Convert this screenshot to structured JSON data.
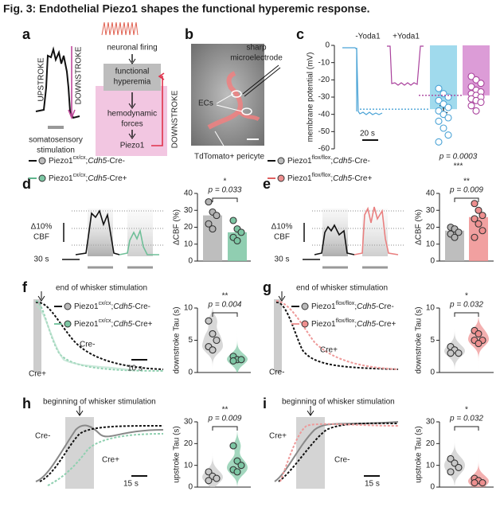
{
  "title": "Fig. 3: Endothelial Piezo1 shapes the functional hyperemic response.",
  "panels": {
    "a": {
      "label": "a",
      "upstroke": "UPSTROKE",
      "downstroke": "DOWNSTROKE",
      "stimulus": [
        "somatosensory",
        "stimulation"
      ],
      "flow": {
        "firing": "neuronal firing",
        "hyperemia": [
          "functional",
          "hyperemia"
        ],
        "forces": [
          "hemodynamic",
          "forces"
        ],
        "receptor": "Piezo1",
        "downstroke": "DOWNSTROKE"
      }
    },
    "b": {
      "label": "b",
      "electrode": [
        "sharp",
        "microelectrode"
      ],
      "cells": "ECs",
      "pericyte": "TdTomato+ pericyte"
    },
    "c": {
      "label": "c"
    },
    "d": {
      "label": "d",
      "legend": [
        {
          "gene": "Piezo1",
          "sup": "cx/cx",
          "sep": ";",
          "driver": "Cdh5",
          "suffix": "-Cre-"
        },
        {
          "gene": "Piezo1",
          "sup": "cx/cx",
          "sep": ";",
          "driver": "Cdh5",
          "suffix": "-Cre+"
        }
      ],
      "scale": [
        "Δ10%",
        "CBF"
      ],
      "time": "30 s"
    },
    "e": {
      "label": "e",
      "legend": [
        {
          "gene": "Piezo1",
          "sup": "flox/flox",
          "sep": ";",
          "driver": "Cdh5",
          "suffix": "-Cre-"
        },
        {
          "gene": "Piezo1",
          "sup": "flox/flox",
          "sep": ";",
          "driver": "Cdh5",
          "suffix": "-Cre+"
        }
      ],
      "scale": [
        "Δ10%",
        "CBF"
      ],
      "time": "30 s"
    },
    "f": {
      "label": "f",
      "marker": "end of whisker stimulation",
      "legend": [
        {
          "gene": "Piezo1",
          "sup": "cx/cx",
          "sep": ";",
          "driver": "Cdh5",
          "suffix": "-Cre-"
        },
        {
          "gene": "Piezo1",
          "sup": "cx/cx",
          "sep": ";",
          "driver": "Cdh5",
          "suffix": "-Cre+"
        }
      ],
      "trace_labels": [
        "Cre-",
        "Cre+"
      ],
      "time": "10 s"
    },
    "g": {
      "label": "g",
      "marker": "end of whisker stimulation",
      "legend": [
        {
          "gene": "Piezo1",
          "sup": "flox/flox",
          "sep": ";",
          "driver": "Cdh5",
          "suffix": "-Cre-"
        },
        {
          "gene": "Piezo1",
          "sup": "flox/flox",
          "sep": ";",
          "driver": "Cdh5",
          "suffix": "-Cre+"
        }
      ],
      "trace_labels": [
        "Cre+",
        "Cre-"
      ]
    },
    "h": {
      "label": "h",
      "marker": "beginning of whisker stimulation",
      "trace_labels": [
        "Cre-",
        "Cre+"
      ],
      "time": "15 s"
    },
    "i": {
      "label": "i",
      "marker": "beginning of whisker stimulation",
      "trace_labels": [
        "Cre+",
        "Cre-"
      ],
      "time": "15 s"
    }
  },
  "chart_data": [
    {
      "type": "bar",
      "ylabel": "membrane potential (mV)",
      "ylim": [
        -60,
        0
      ],
      "yticks": [
        0,
        -10,
        -20,
        -30,
        -40,
        -50,
        -60
      ],
      "trace_labels": [
        "-Yoda1",
        "+Yoda1"
      ],
      "time": "20 s",
      "categories": [
        null,
        null
      ],
      "colors": [
        "#8fd3ea",
        "#d68bd0"
      ],
      "values": [
        -37,
        -29
      ],
      "errors": [
        2,
        1.5
      ],
      "points": [
        [
          -25,
          -28,
          -30,
          -32,
          -34,
          -36,
          -38,
          -40,
          -42,
          -44,
          -48,
          -52,
          -56
        ],
        [
          -18,
          -20,
          -22,
          -24,
          -26,
          -27,
          -28,
          -29,
          -30,
          -31,
          -32,
          -33,
          -35,
          -38
        ]
      ],
      "p_label": "p = 0.0003",
      "stars": "***"
    },
    {
      "type": "bar",
      "ylabel": "ΔCBF (%)",
      "ylim": [
        0,
        40
      ],
      "yticks": [
        0,
        10,
        20,
        30,
        40
      ],
      "categories": [
        null,
        null
      ],
      "colors": [
        "#b3b3b3",
        "#7cc6a3"
      ],
      "values": [
        27,
        17
      ],
      "points": [
        [
          35,
          29,
          27,
          22,
          19
        ],
        [
          24,
          19,
          17,
          14,
          12
        ]
      ],
      "p_label": "p = 0.033",
      "stars": "*"
    },
    {
      "type": "bar",
      "ylabel": "ΔCBF (%)",
      "ylim": [
        0,
        40
      ],
      "yticks": [
        0,
        10,
        20,
        30,
        40
      ],
      "categories": [
        null,
        null
      ],
      "colors": [
        "#b3b3b3",
        "#ee8f8f"
      ],
      "values": [
        18,
        26
      ],
      "points": [
        [
          20,
          19,
          17,
          16,
          14
        ],
        [
          34,
          30,
          27,
          25,
          22,
          18,
          14
        ]
      ],
      "p_label": "p = 0.009",
      "stars": "**"
    },
    {
      "type": "violin",
      "ylabel": "downstroke Tau (s)",
      "ylim": [
        0,
        10
      ],
      "yticks": [
        0,
        5,
        10
      ],
      "categories": [
        null,
        null
      ],
      "colors": [
        "#c8c8c8",
        "#7cc6a3"
      ],
      "points": [
        [
          8,
          6,
          5,
          4,
          3.5
        ],
        [
          2.5,
          2,
          2,
          1.8
        ]
      ],
      "p_label": "p = 0.004",
      "stars": "**"
    },
    {
      "type": "violin",
      "ylabel": "downstroke Tau (s)",
      "ylim": [
        0,
        10
      ],
      "yticks": [
        0,
        5,
        10
      ],
      "categories": [
        null,
        null
      ],
      "colors": [
        "#c8c8c8",
        "#ee8f8f"
      ],
      "points": [
        [
          4,
          3.5,
          3,
          3
        ],
        [
          6.5,
          6,
          5,
          5,
          4.5
        ]
      ],
      "p_label": "p = 0.032",
      "stars": "*"
    },
    {
      "type": "violin",
      "ylabel": "upstroke Tau (s)",
      "ylim": [
        0,
        30
      ],
      "yticks": [
        0,
        10,
        20,
        30
      ],
      "categories": [
        null,
        null
      ],
      "colors": [
        "#c8c8c8",
        "#7cc6a3"
      ],
      "points": [
        [
          7,
          5,
          4,
          3
        ],
        [
          19,
          12,
          10,
          8,
          7
        ]
      ],
      "p_label": "p = 0.009",
      "stars": "**"
    },
    {
      "type": "violin",
      "ylabel": "upstroke Tau (s)",
      "ylim": [
        0,
        30
      ],
      "yticks": [
        0,
        10,
        20,
        30
      ],
      "categories": [
        null,
        null
      ],
      "colors": [
        "#c8c8c8",
        "#ee8f8f"
      ],
      "points": [
        [
          13,
          11,
          9,
          7
        ],
        [
          4,
          3,
          2,
          2
        ]
      ],
      "p_label": "p = 0.032",
      "stars": "*"
    }
  ]
}
